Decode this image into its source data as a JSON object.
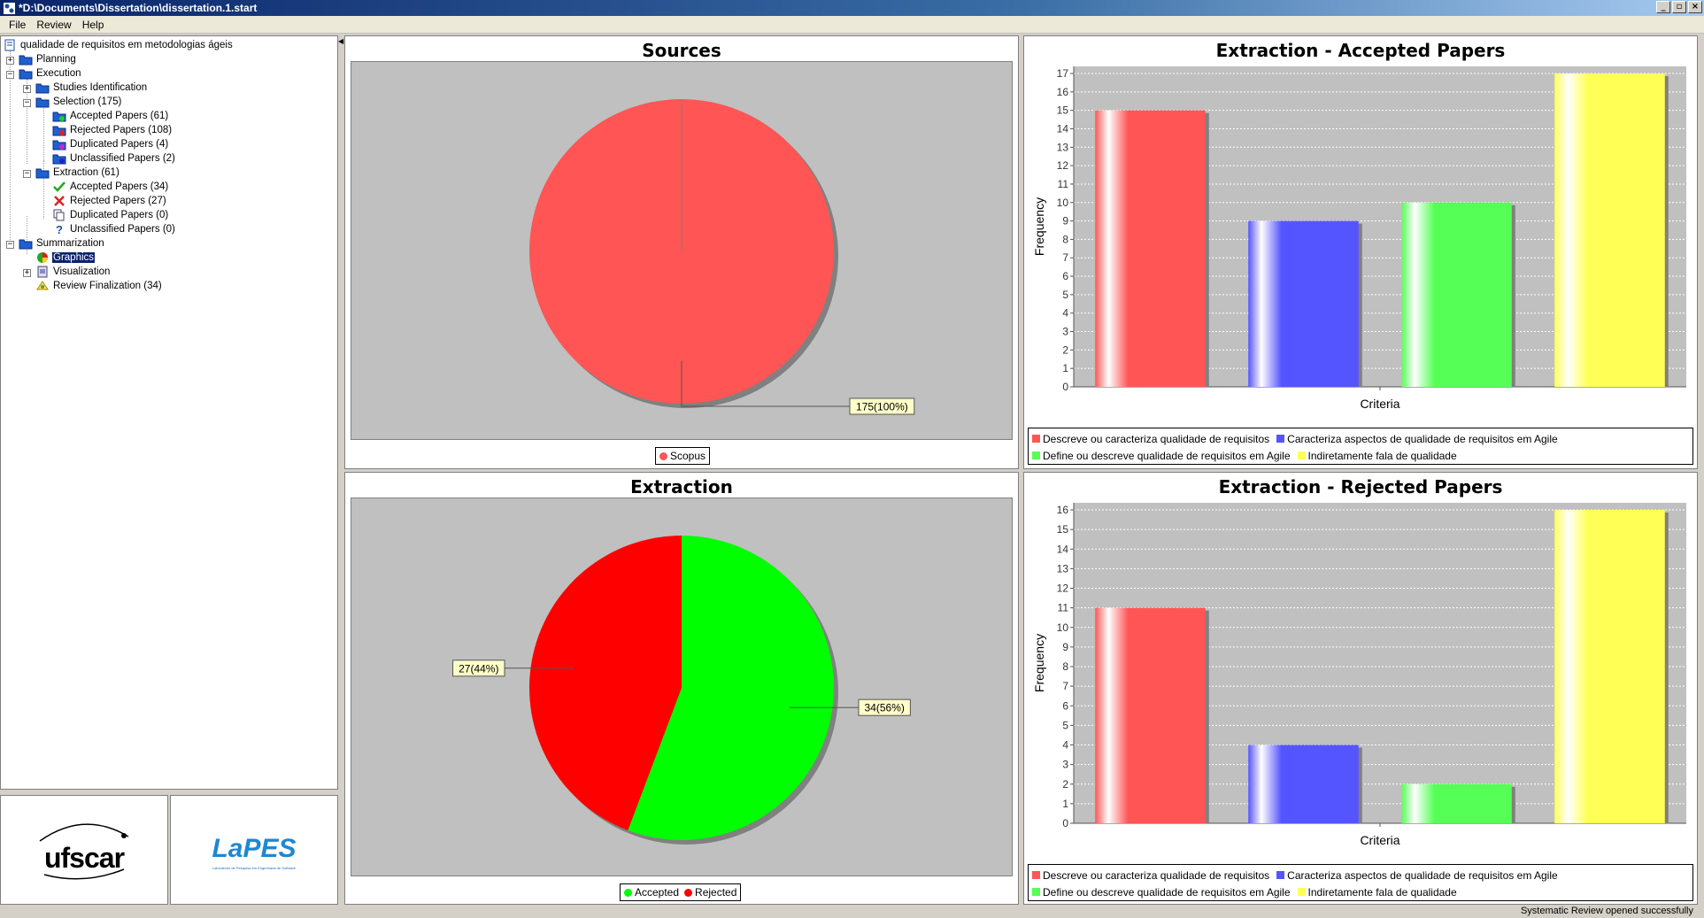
{
  "window": {
    "title": "*D:\\Documents\\Dissertation\\dissertation.1.start"
  },
  "menu": [
    "File",
    "Review",
    "Help"
  ],
  "tree": {
    "root": "qualidade de requisitos em metodologias ágeis",
    "planning": "Planning",
    "execution": "Execution",
    "studies_identification": "Studies Identification",
    "selection": "Selection (175)",
    "sel_accepted": "Accepted Papers (61)",
    "sel_rejected": "Rejected Papers (108)",
    "sel_duplicated": "Duplicated Papers (4)",
    "sel_unclassified": "Unclassified Papers (2)",
    "extraction": "Extraction (61)",
    "ext_accepted": "Accepted Papers (34)",
    "ext_rejected": "Rejected Papers (27)",
    "ext_duplicated": "Duplicated Papers (0)",
    "ext_unclassified": "Unclassified Papers (0)",
    "summarization": "Summarization",
    "graphics": "Graphics",
    "visualization": "Visualization",
    "review_finalization": "Review Finalization (34)"
  },
  "logos": {
    "ufscar": "ufscar",
    "lapes": "LaPES",
    "lapes_sub": "Laboratório de Pesquisa em Engenharia de Software"
  },
  "status": "Systematic Review opened successfully",
  "colors": {
    "red": "#ff5555",
    "green": "#00ff00",
    "dark_red": "#ff0000",
    "blue": "#5555ff",
    "lime": "#55ff55",
    "yellow": "#ffff55"
  },
  "chart_data": [
    {
      "type": "pie",
      "title": "Sources",
      "labels": [
        "Scopus"
      ],
      "values": [
        175
      ],
      "slice_labels": [
        "175(100%)"
      ],
      "colors": [
        "#ff5555"
      ],
      "legend": "bottom"
    },
    {
      "type": "bar",
      "title": "Extraction - Accepted Papers",
      "categories": [
        "Descreve ou caracteriza qualidade de requisitos",
        "Caracteriza aspectos de qualidade de requisitos em Agile",
        "Define ou descreve qualidade de requisitos em Agile",
        "Indiretamente fala de qualidade"
      ],
      "values": [
        15,
        9,
        10,
        17
      ],
      "colors": [
        "#ff5555",
        "#5555ff",
        "#55ff55",
        "#ffff55"
      ],
      "xlabel": "Criteria",
      "ylabel": "Frequency",
      "ylim": [
        0,
        17
      ],
      "yticks": [
        "0",
        "1",
        "2",
        "3",
        "4",
        "5",
        "6",
        "7",
        "8",
        "9",
        "10",
        "11",
        "12",
        "13",
        "14",
        "15",
        "16",
        "17"
      ],
      "legend": "bottom"
    },
    {
      "type": "pie",
      "title": "Extraction",
      "labels": [
        "Accepted",
        "Rejected"
      ],
      "values": [
        34,
        27
      ],
      "slice_labels": [
        "34(56%)",
        "27(44%)"
      ],
      "colors": [
        "#00ff00",
        "#ff0000"
      ],
      "legend": "bottom"
    },
    {
      "type": "bar",
      "title": "Extraction - Rejected Papers",
      "categories": [
        "Descreve ou caracteriza qualidade de requisitos",
        "Caracteriza aspectos de qualidade de requisitos em Agile",
        "Define ou descreve qualidade de requisitos em Agile",
        "Indiretamente fala de qualidade"
      ],
      "values": [
        11,
        4,
        2,
        16
      ],
      "colors": [
        "#ff5555",
        "#5555ff",
        "#55ff55",
        "#ffff55"
      ],
      "xlabel": "Criteria",
      "ylabel": "Frequency",
      "ylim": [
        0,
        16
      ],
      "yticks": [
        "0",
        "1",
        "2",
        "3",
        "4",
        "5",
        "6",
        "7",
        "8",
        "9",
        "10",
        "11",
        "12",
        "13",
        "14",
        "15",
        "16"
      ],
      "legend": "bottom"
    }
  ]
}
